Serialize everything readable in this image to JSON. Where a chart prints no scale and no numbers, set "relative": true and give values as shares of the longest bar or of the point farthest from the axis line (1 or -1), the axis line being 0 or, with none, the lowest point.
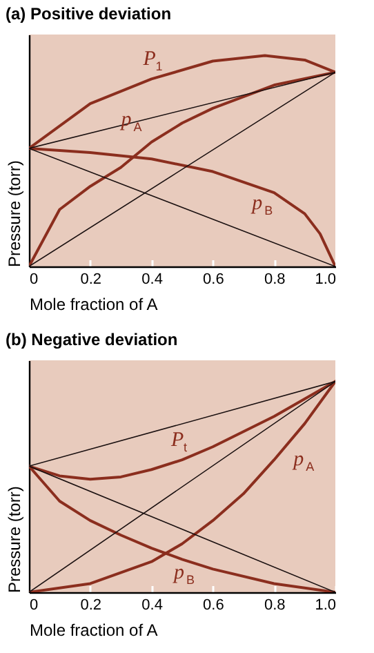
{
  "chart_data": [
    {
      "type": "line",
      "title": "(a) Positive deviation",
      "xlabel": "Mole fraction of A",
      "ylabel": "Pressure (torr)",
      "relative": true,
      "xlim": [
        0,
        1
      ],
      "xticks": [
        0,
        0.2,
        0.4,
        0.6,
        0.8,
        {
          "value": 1,
          "label": "1.0"
        }
      ],
      "grid": false,
      "legend": false,
      "series": [
        {
          "name": "P$_{1}$",
          "color": "#8b2e1e",
          "x": [
            0,
            0.2,
            0.4,
            0.6,
            0.77,
            0.9,
            1
          ],
          "values": [
            0.56,
            0.772,
            0.889,
            0.974,
            1,
            0.979,
            0.921
          ]
        },
        {
          "name": "p$_{A}$",
          "color": "#8b2e1e",
          "x": [
            0,
            0.1,
            0.2,
            0.3,
            0.4,
            0.5,
            0.6,
            0.8,
            1
          ],
          "values": [
            0,
            0.27,
            0.38,
            0.47,
            0.59,
            0.68,
            0.75,
            0.86,
            0.921
          ]
        },
        {
          "name": "p$_{B}$",
          "color": "#8b2e1e",
          "x": [
            0,
            0.2,
            0.4,
            0.6,
            0.8,
            0.9,
            0.95,
            1
          ],
          "values": [
            0.56,
            0.54,
            0.51,
            0.45,
            0.35,
            0.25,
            0.155,
            0
          ]
        },
        {
          "color": "#1a1010",
          "x": [
            0,
            1
          ],
          "values": [
            0.56,
            0.921
          ]
        },
        {
          "color": "#1a1010",
          "x": [
            0,
            1
          ],
          "values": [
            0,
            0.921
          ]
        },
        {
          "color": "#1a1010",
          "x": [
            0,
            1
          ],
          "values": [
            0.56,
            0
          ]
        }
      ]
    },
    {
      "type": "line",
      "title": "(b) Negative deviation",
      "xlabel": "Mole fraction of A",
      "ylabel": "Pressure (torr)",
      "relative": true,
      "xlim": [
        0,
        1
      ],
      "xticks": [
        0,
        0.2,
        0.4,
        0.6,
        0.8,
        {
          "value": 1,
          "label": "1.0"
        }
      ],
      "grid": false,
      "legend": false,
      "series": [
        {
          "name": "P$_{t}$",
          "color": "#8b2e1e",
          "x": [
            0,
            0.1,
            0.2,
            0.3,
            0.4,
            0.5,
            0.6,
            0.8,
            1
          ],
          "values": [
            0.598,
            0.552,
            0.536,
            0.547,
            0.582,
            0.628,
            0.69,
            0.834,
            1
          ]
        },
        {
          "name": "p$_{A}$",
          "color": "#8b2e1e",
          "x": [
            0,
            0.2,
            0.4,
            0.5,
            0.6,
            0.7,
            0.8,
            0.9,
            1
          ],
          "values": [
            0,
            0.041,
            0.145,
            0.23,
            0.34,
            0.467,
            0.628,
            0.8,
            1
          ]
        },
        {
          "name": "p$_{B}$",
          "color": "#8b2e1e",
          "x": [
            0,
            0.1,
            0.2,
            0.3,
            0.4,
            0.5,
            0.6,
            0.8,
            1
          ],
          "values": [
            0.598,
            0.432,
            0.34,
            0.271,
            0.209,
            0.156,
            0.11,
            0.041,
            0
          ]
        },
        {
          "color": "#1a1010",
          "x": [
            0,
            1
          ],
          "values": [
            0.598,
            1
          ]
        },
        {
          "color": "#1a1010",
          "x": [
            0,
            1
          ],
          "values": [
            0,
            1
          ]
        },
        {
          "color": "#1a1010",
          "x": [
            0,
            1
          ],
          "values": [
            0.598,
            0
          ]
        }
      ]
    }
  ]
}
